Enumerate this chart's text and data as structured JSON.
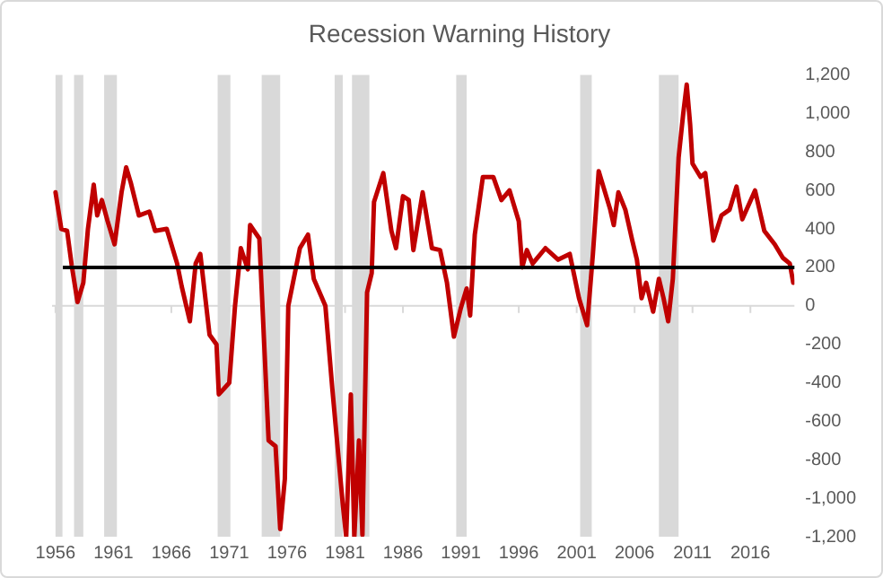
{
  "chart_data": {
    "type": "line",
    "title": "Recession Warning History",
    "xlim": [
      1955.7,
      2019.8
    ],
    "xticks": [
      1956,
      1961,
      1966,
      1971,
      1976,
      1981,
      1986,
      1991,
      1996,
      2001,
      2006,
      2011,
      2016
    ],
    "ylim": [
      -1200,
      1200
    ],
    "yticks": [
      {
        "value": -1200,
        "label": "-1,200"
      },
      {
        "value": -1000,
        "label": "-1,000"
      },
      -800,
      -600,
      -400,
      -200,
      0,
      200,
      400,
      600,
      800,
      {
        "value": 1000,
        "label": "1,000"
      },
      {
        "value": 1200,
        "label": "1,200"
      }
    ],
    "grid": false,
    "legend": false,
    "series": [
      {
        "color": "#c00000",
        "x": [
          1956.0,
          1956.5,
          1957.0,
          1957.4,
          1957.9,
          1958.4,
          1958.8,
          1959.3,
          1959.6,
          1960.0,
          1960.5,
          1961.1,
          1961.7,
          1962.1,
          1962.5,
          1963.2,
          1964.1,
          1964.6,
          1965.6,
          1966.5,
          1966.9,
          1967.6,
          1968.1,
          1968.5,
          1969.3,
          1969.9,
          1970.1,
          1971.0,
          1971.5,
          1972.0,
          1972.6,
          1972.8,
          1973.6,
          1974.4,
          1975.0,
          1975.4,
          1975.8,
          1976.1,
          1977.1,
          1977.8,
          1978.3,
          1979.3,
          1979.9,
          1980.8,
          1981.1,
          1981.5,
          1981.8,
          1982.2,
          1982.5,
          1982.9,
          1983.3,
          1983.5,
          1984.3,
          1985.0,
          1985.4,
          1986.0,
          1986.5,
          1986.9,
          1987.7,
          1988.5,
          1989.2,
          1989.8,
          1990.4,
          1991.0,
          1991.5,
          1991.8,
          1992.2,
          1992.9,
          1993.8,
          1994.5,
          1995.2,
          1996.0,
          1996.3,
          1996.7,
          1997.2,
          1998.3,
          1999.4,
          2000.4,
          2001.2,
          2001.9,
          2002.4,
          2002.9,
          2003.9,
          2004.2,
          2004.6,
          2005.2,
          2005.8,
          2006.2,
          2006.6,
          2007.0,
          2007.6,
          2008.1,
          2008.5,
          2008.9,
          2009.3,
          2009.8,
          2010.2,
          2010.5,
          2010.8,
          2011.0,
          2011.7,
          2012.1,
          2012.8,
          2013.5,
          2014.2,
          2014.8,
          2015.3,
          2016.4,
          2017.2,
          2018.1,
          2018.8,
          2019.4,
          2019.7
        ],
        "values": [
          590,
          400,
          390,
          210,
          20,
          120,
          400,
          630,
          470,
          550,
          440,
          320,
          590,
          720,
          640,
          470,
          490,
          390,
          400,
          220,
          100,
          -80,
          220,
          270,
          -150,
          -200,
          -460,
          -400,
          0,
          300,
          190,
          420,
          350,
          -700,
          -730,
          -1160,
          -900,
          0,
          300,
          370,
          140,
          0,
          -430,
          -1030,
          -1200,
          -460,
          -1200,
          -700,
          -1190,
          70,
          170,
          540,
          690,
          390,
          300,
          570,
          550,
          290,
          590,
          300,
          290,
          120,
          -160,
          -10,
          90,
          -50,
          370,
          670,
          670,
          550,
          600,
          440,
          200,
          290,
          220,
          300,
          240,
          270,
          40,
          -100,
          270,
          700,
          500,
          420,
          590,
          500,
          340,
          240,
          40,
          120,
          -30,
          140,
          40,
          -80,
          140,
          770,
          1000,
          1150,
          940,
          740,
          670,
          690,
          340,
          470,
          500,
          620,
          450,
          600,
          390,
          320,
          250,
          220,
          120
        ]
      }
    ],
    "ref_lines": [
      {
        "axis": "y",
        "value": 200,
        "color": "#000000"
      }
    ],
    "bands": [
      {
        "axis": "x",
        "from": 1956.0,
        "to": 1956.6,
        "color": "#d9d9d9"
      },
      {
        "axis": "x",
        "from": 1957.6,
        "to": 1958.4,
        "color": "#d9d9d9"
      },
      {
        "axis": "x",
        "from": 1960.2,
        "to": 1961.3,
        "color": "#d9d9d9"
      },
      {
        "axis": "x",
        "from": 1970.0,
        "to": 1971.1,
        "color": "#d9d9d9"
      },
      {
        "axis": "x",
        "from": 1973.8,
        "to": 1975.4,
        "color": "#d9d9d9"
      },
      {
        "axis": "x",
        "from": 1980.1,
        "to": 1980.8,
        "color": "#d9d9d9"
      },
      {
        "axis": "x",
        "from": 1981.6,
        "to": 1983.1,
        "color": "#d9d9d9"
      },
      {
        "axis": "x",
        "from": 1990.6,
        "to": 1991.5,
        "color": "#d9d9d9"
      },
      {
        "axis": "x",
        "from": 2001.3,
        "to": 2002.3,
        "color": "#d9d9d9"
      },
      {
        "axis": "x",
        "from": 2008.1,
        "to": 2009.8,
        "color": "#d9d9d9"
      }
    ]
  }
}
